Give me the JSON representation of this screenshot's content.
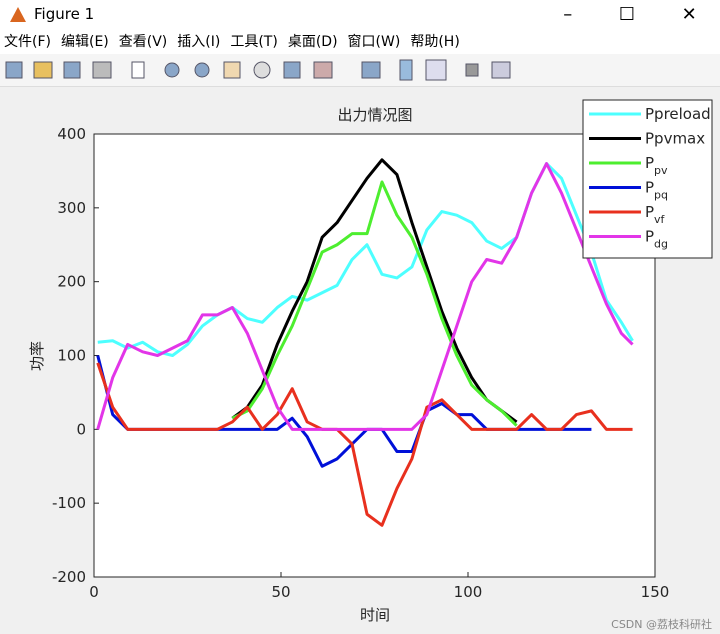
{
  "window": {
    "title": "Figure 1",
    "menu": [
      "文件(F)",
      "编辑(E)",
      "查看(V)",
      "插入(I)",
      "工具(T)",
      "桌面(D)",
      "窗口(W)",
      "帮助(H)"
    ],
    "watermark": "CSDN @荔枝科研社"
  },
  "chart_data": {
    "type": "line",
    "title": "出力情况图",
    "x_label": "时间",
    "y_label": "功率",
    "x": [
      1,
      5,
      9,
      13,
      17,
      21,
      25,
      29,
      33,
      37,
      41,
      45,
      49,
      53,
      57,
      61,
      65,
      69,
      73,
      77,
      81,
      85,
      89,
      93,
      97,
      101,
      105,
      109,
      113,
      117,
      121,
      125,
      129,
      133,
      137,
      141,
      144
    ],
    "xlim": [
      0,
      150
    ],
    "xticks": [
      0,
      50,
      100,
      150
    ],
    "ylim": [
      -200,
      400
    ],
    "yticks": [
      -200,
      -100,
      0,
      100,
      200,
      300,
      400
    ],
    "grid": false,
    "legend": "upper right",
    "series": [
      {
        "name": "Ppreload",
        "color": "#4dffff",
        "values": [
          118,
          120,
          110,
          118,
          105,
          100,
          115,
          140,
          155,
          165,
          150,
          145,
          165,
          180,
          175,
          185,
          195,
          230,
          250,
          210,
          205,
          220,
          270,
          295,
          290,
          280,
          255,
          245,
          260,
          320,
          360,
          340,
          290,
          240,
          175,
          145,
          120
        ]
      },
      {
        "name": "Ppvmax",
        "color": "#000000",
        "values": [
          null,
          null,
          null,
          null,
          null,
          null,
          null,
          null,
          null,
          15,
          30,
          60,
          115,
          160,
          200,
          260,
          280,
          310,
          340,
          365,
          345,
          280,
          220,
          160,
          110,
          70,
          40,
          25,
          10,
          null,
          null,
          null,
          null,
          null,
          null,
          null,
          null
        ]
      },
      {
        "name": "P",
        "subscript": "pv",
        "color": "#4dee2f",
        "values": [
          null,
          null,
          null,
          null,
          null,
          null,
          null,
          null,
          null,
          15,
          25,
          55,
          100,
          140,
          190,
          240,
          250,
          265,
          265,
          335,
          290,
          260,
          210,
          150,
          100,
          60,
          40,
          25,
          5,
          null,
          null,
          null,
          null,
          null,
          null,
          null,
          null
        ]
      },
      {
        "name": "P",
        "subscript": "pq",
        "color": "#0010d8",
        "values": [
          100,
          20,
          0,
          0,
          0,
          0,
          0,
          0,
          0,
          0,
          0,
          0,
          0,
          15,
          -10,
          -50,
          -40,
          -20,
          0,
          0,
          -30,
          -30,
          25,
          35,
          20,
          20,
          0,
          0,
          0,
          0,
          0,
          0,
          0,
          0,
          null,
          null,
          null
        ]
      },
      {
        "name": "P",
        "subscript": "vf",
        "color": "#e8301e",
        "values": [
          90,
          30,
          0,
          0,
          0,
          0,
          0,
          0,
          0,
          10,
          30,
          0,
          20,
          55,
          10,
          0,
          0,
          -20,
          -115,
          -130,
          -80,
          -40,
          30,
          40,
          20,
          0,
          0,
          0,
          0,
          20,
          0,
          0,
          20,
          25,
          0,
          0,
          0
        ]
      },
      {
        "name": "P",
        "subscript": "dg",
        "color": "#e235e8",
        "values": [
          0,
          70,
          115,
          105,
          100,
          110,
          120,
          155,
          155,
          165,
          130,
          80,
          30,
          0,
          0,
          0,
          0,
          0,
          0,
          0,
          0,
          0,
          20,
          80,
          140,
          200,
          230,
          225,
          260,
          320,
          360,
          320,
          270,
          220,
          170,
          130,
          115
        ]
      }
    ]
  }
}
